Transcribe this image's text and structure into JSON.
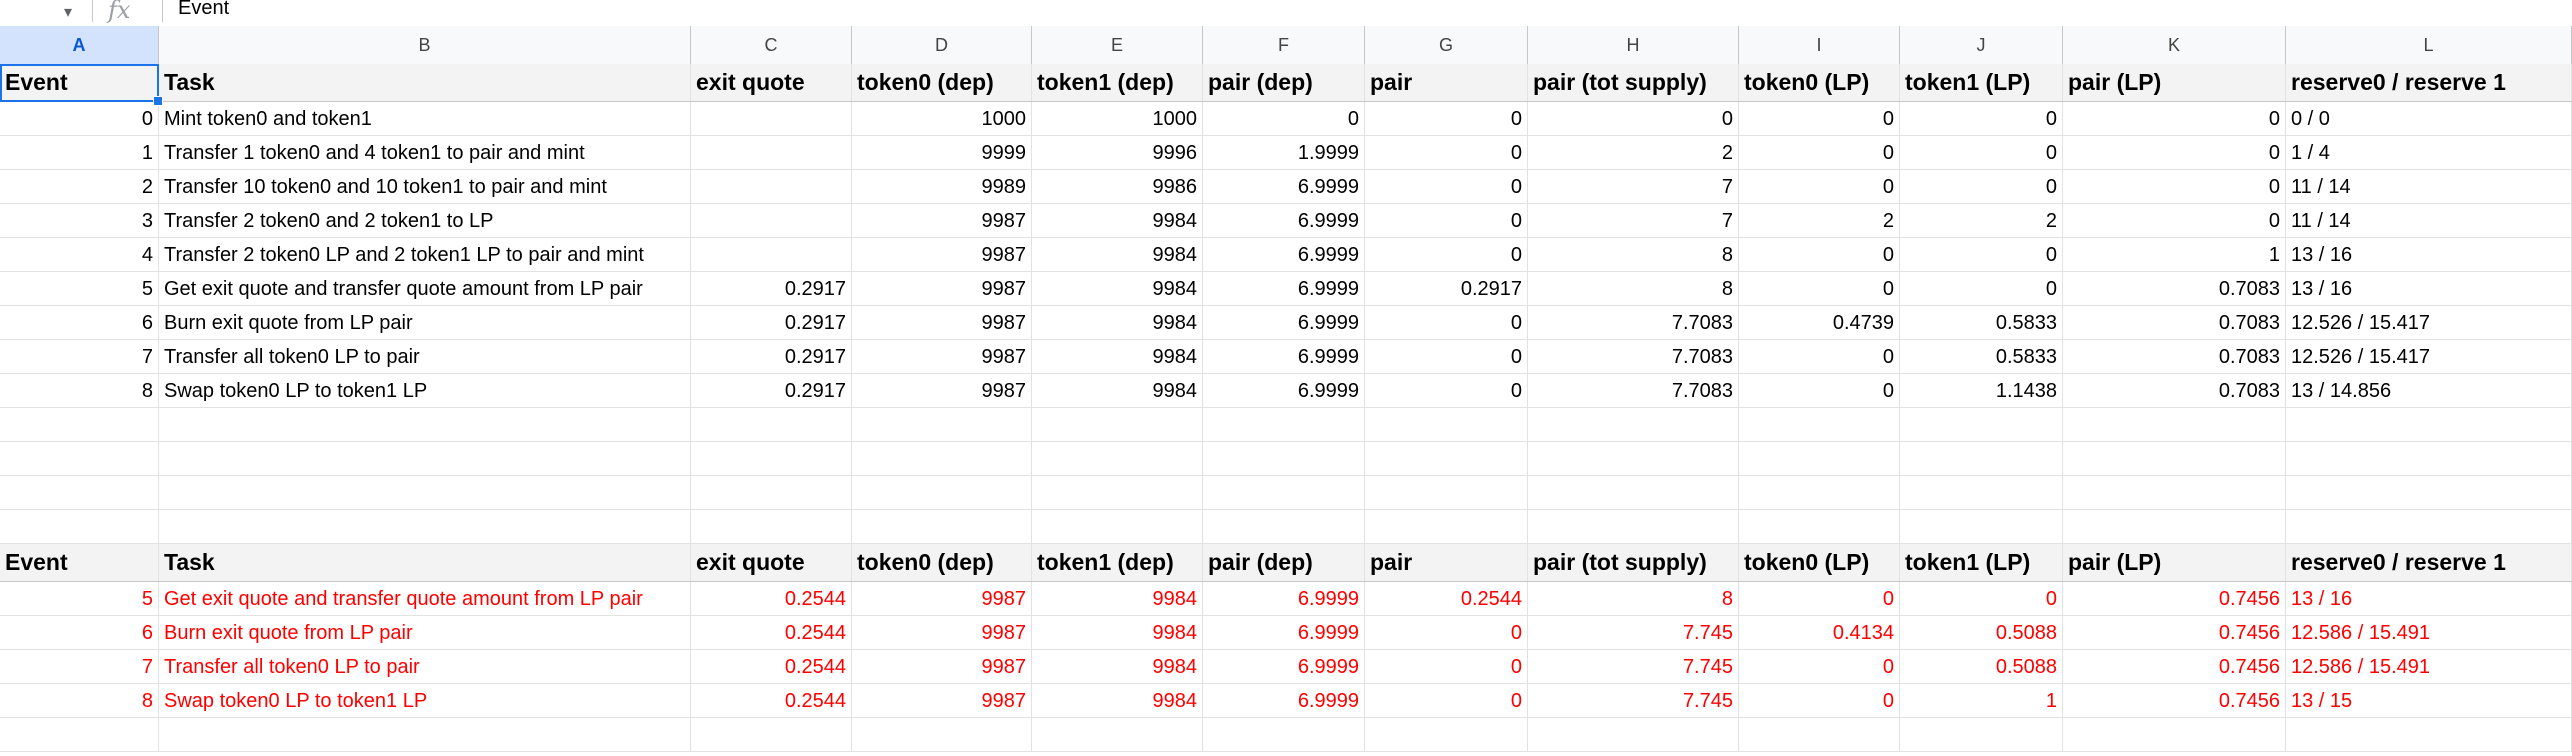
{
  "formula_bar": {
    "fx_label": "fx",
    "value": "Event"
  },
  "columns": [
    "A",
    "B",
    "C",
    "D",
    "E",
    "F",
    "G",
    "H",
    "I",
    "J",
    "K",
    "L"
  ],
  "selected_column": "A",
  "table1": {
    "headers": [
      "Event",
      "Task",
      "exit quote",
      "token0 (dep)",
      "token1 (dep)",
      "pair (dep)",
      "pair",
      "pair (tot supply)",
      "token0 (LP)",
      "token1 (LP)",
      "pair (LP)",
      "reserve0 / reserve 1"
    ],
    "rows": [
      [
        "0",
        "Mint token0 and token1",
        "",
        "1000",
        "1000",
        "0",
        "0",
        "0",
        "0",
        "0",
        "0",
        "0 / 0"
      ],
      [
        "1",
        "Transfer 1 token0 and 4 token1 to pair and mint",
        "",
        "9999",
        "9996",
        "1.9999",
        "0",
        "2",
        "0",
        "0",
        "0",
        "1 / 4"
      ],
      [
        "2",
        "Transfer 10 token0 and 10 token1 to pair and mint",
        "",
        "9989",
        "9986",
        "6.9999",
        "0",
        "7",
        "0",
        "0",
        "0",
        "11 / 14"
      ],
      [
        "3",
        "Transfer 2 token0 and 2 token1 to LP",
        "",
        "9987",
        "9984",
        "6.9999",
        "0",
        "7",
        "2",
        "2",
        "0",
        "11 / 14"
      ],
      [
        "4",
        "Transfer 2 token0 LP and 2 token1 LP to pair and mint",
        "",
        "9987",
        "9984",
        "6.9999",
        "0",
        "8",
        "0",
        "0",
        "1",
        "13 / 16"
      ],
      [
        "5",
        "Get exit quote and transfer quote amount from LP pair",
        "0.2917",
        "9987",
        "9984",
        "6.9999",
        "0.2917",
        "8",
        "0",
        "0",
        "0.7083",
        "13 / 16"
      ],
      [
        "6",
        "Burn exit quote from LP pair",
        "0.2917",
        "9987",
        "9984",
        "6.9999",
        "0",
        "7.7083",
        "0.4739",
        "0.5833",
        "0.7083",
        "12.526 / 15.417"
      ],
      [
        "7",
        "Transfer all token0 LP to pair",
        "0.2917",
        "9987",
        "9984",
        "6.9999",
        "0",
        "7.7083",
        "0",
        "0.5833",
        "0.7083",
        "12.526 / 15.417"
      ],
      [
        "8",
        "Swap token0 LP to token1 LP",
        "0.2917",
        "9987",
        "9984",
        "6.9999",
        "0",
        "7.7083",
        "0",
        "1.1438",
        "0.7083",
        "13 / 14.856"
      ]
    ]
  },
  "table2": {
    "headers": [
      "Event",
      "Task",
      "exit quote",
      "token0 (dep)",
      "token1 (dep)",
      "pair (dep)",
      "pair",
      "pair (tot supply)",
      "token0 (LP)",
      "token1 (LP)",
      "pair (LP)",
      "reserve0 / reserve 1"
    ],
    "rows": [
      [
        "5",
        "Get exit quote and transfer quote amount from LP pair",
        "0.2544",
        "9987",
        "9984",
        "6.9999",
        "0.2544",
        "8",
        "0",
        "0",
        "0.7456",
        "13 / 16"
      ],
      [
        "6",
        "Burn exit quote from LP pair",
        "0.2544",
        "9987",
        "9984",
        "6.9999",
        "0",
        "7.745",
        "0.4134",
        "0.5088",
        "0.7456",
        "12.586 / 15.491"
      ],
      [
        "7",
        "Transfer all token0 LP to pair",
        "0.2544",
        "9987",
        "9984",
        "6.9999",
        "0",
        "7.745",
        "0",
        "0.5088",
        "0.7456",
        "12.586 / 15.491"
      ],
      [
        "8",
        "Swap token0 LP to token1 LP",
        "0.2544",
        "9987",
        "9984",
        "6.9999",
        "0",
        "7.745",
        "0",
        "1",
        "0.7456",
        "13 / 15"
      ]
    ]
  },
  "colors": {
    "selection": "#1a73e8",
    "highlight_text": "#ff0000",
    "header_bg": "#f3f3f3"
  }
}
